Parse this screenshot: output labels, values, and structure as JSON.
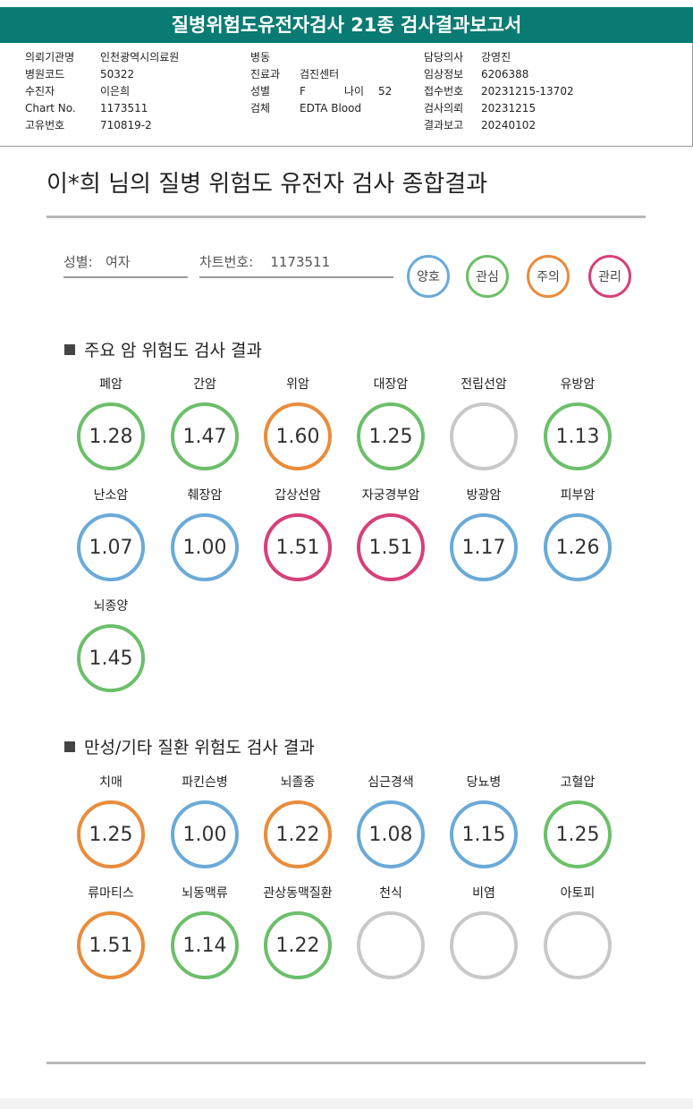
{
  "report_title": "질병위험도유전자검사 21종 검사결과보고서",
  "info": {
    "col1": [
      {
        "label": "의뢰기관명",
        "value": "인천광역시의료원"
      },
      {
        "label": "병원코드",
        "value": "50322"
      },
      {
        "label": "수진자",
        "value": "이은희"
      },
      {
        "label": "Chart No.",
        "value": "1173511"
      },
      {
        "label": "고유번호",
        "value": "710819-2"
      }
    ],
    "col2": [
      {
        "label": "병동",
        "value": ""
      },
      {
        "label": "진료과",
        "value": "검진센터"
      },
      {
        "label": "성별",
        "value": "F"
      },
      {
        "label": "검체",
        "value": "EDTA Blood"
      }
    ],
    "age_label": "나이",
    "age_value": "52",
    "col3": [
      {
        "label": "담당의사",
        "value": "강영진"
      },
      {
        "label": "임상정보",
        "value": "6206388"
      },
      {
        "label": "접수번호",
        "value": "20231215-13702"
      },
      {
        "label": "검사의뢰",
        "value": "20231215"
      },
      {
        "label": "결과보고",
        "value": "20240102"
      }
    ]
  },
  "main_title": "이*희 님의 질병 위험도 유전자 검사 종합결과",
  "fields": {
    "gender_label": "성별:",
    "gender_value": "여자",
    "chart_label": "차트번호:",
    "chart_value": "1173511"
  },
  "legend": [
    {
      "label": "양호",
      "color": "#6aaad8"
    },
    {
      "label": "관심",
      "color": "#6cbf6a"
    },
    {
      "label": "주의",
      "color": "#e98c3b"
    },
    {
      "label": "관리",
      "color": "#d6417a"
    }
  ],
  "sections": [
    {
      "title": "주요 암 위험도 검사 결과",
      "items": [
        {
          "name": "폐암",
          "value": "1.28",
          "color": "#6cbf6a"
        },
        {
          "name": "간암",
          "value": "1.47",
          "color": "#6cbf6a"
        },
        {
          "name": "위암",
          "value": "1.60",
          "color": "#e98c3b"
        },
        {
          "name": "대장암",
          "value": "1.25",
          "color": "#6cbf6a"
        },
        {
          "name": "전립선암",
          "value": "",
          "color": "#c8c8c8"
        },
        {
          "name": "유방암",
          "value": "1.13",
          "color": "#6cbf6a"
        },
        {
          "name": "난소암",
          "value": "1.07",
          "color": "#6aaad8"
        },
        {
          "name": "췌장암",
          "value": "1.00",
          "color": "#6aaad8"
        },
        {
          "name": "갑상선암",
          "value": "1.51",
          "color": "#d6417a"
        },
        {
          "name": "자궁경부암",
          "value": "1.51",
          "color": "#d6417a"
        },
        {
          "name": "방광암",
          "value": "1.17",
          "color": "#6aaad8"
        },
        {
          "name": "피부암",
          "value": "1.26",
          "color": "#6aaad8"
        },
        {
          "name": "뇌종양",
          "value": "1.45",
          "color": "#6cbf6a"
        }
      ]
    },
    {
      "title": "만성/기타 질환 위험도 검사 결과",
      "items": [
        {
          "name": "치매",
          "value": "1.25",
          "color": "#e98c3b"
        },
        {
          "name": "파킨슨병",
          "value": "1.00",
          "color": "#6aaad8"
        },
        {
          "name": "뇌졸중",
          "value": "1.22",
          "color": "#e98c3b"
        },
        {
          "name": "심근경색",
          "value": "1.08",
          "color": "#6aaad8"
        },
        {
          "name": "당뇨병",
          "value": "1.15",
          "color": "#6aaad8"
        },
        {
          "name": "고혈압",
          "value": "1.25",
          "color": "#6cbf6a"
        },
        {
          "name": "류마티스",
          "value": "1.51",
          "color": "#e98c3b"
        },
        {
          "name": "뇌동맥류",
          "value": "1.14",
          "color": "#6cbf6a"
        },
        {
          "name": "관상동맥질환",
          "value": "1.22",
          "color": "#6cbf6a"
        },
        {
          "name": "천식",
          "value": "",
          "color": "#c8c8c8"
        },
        {
          "name": "비염",
          "value": "",
          "color": "#c8c8c8"
        },
        {
          "name": "아토피",
          "value": "",
          "color": "#c8c8c8"
        }
      ]
    }
  ]
}
